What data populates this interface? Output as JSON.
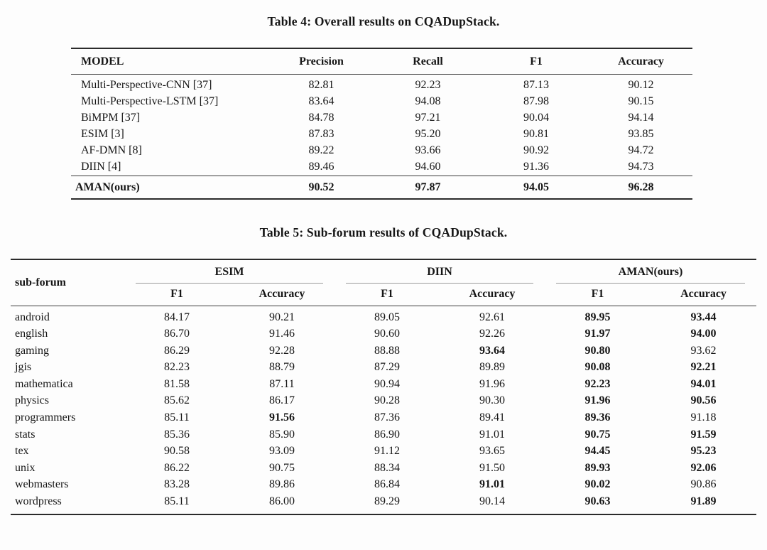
{
  "table4": {
    "title": "Table 4: Overall results on CQADupStack.",
    "headers": [
      "MODEL",
      "Precision",
      "Recall",
      "F1",
      "Accuracy"
    ],
    "rows": [
      {
        "model": "Multi-Perspective-CNN [37]",
        "values": [
          "82.81",
          "92.23",
          "87.13",
          "90.12"
        ]
      },
      {
        "model": "Multi-Perspective-LSTM [37]",
        "values": [
          "83.64",
          "94.08",
          "87.98",
          "90.15"
        ]
      },
      {
        "model": "BiMPM [37]",
        "values": [
          "84.78",
          "97.21",
          "90.04",
          "94.14"
        ]
      },
      {
        "model": "ESIM [3]",
        "values": [
          "87.83",
          "95.20",
          "90.81",
          "93.85"
        ]
      },
      {
        "model": "AF-DMN [8]",
        "values": [
          "89.22",
          "93.66",
          "90.92",
          "94.72"
        ]
      },
      {
        "model": "DIIN [4]",
        "values": [
          "89.46",
          "94.60",
          "91.36",
          "94.73"
        ]
      }
    ],
    "summary_row": {
      "model": "AMAN(ours)",
      "values": [
        "90.52",
        "97.87",
        "94.05",
        "96.28"
      ]
    }
  },
  "table5": {
    "title": "Table 5: Sub-forum results of CQADupStack.",
    "row_header": "sub-forum",
    "groups": [
      {
        "label": "ESIM"
      },
      {
        "label": "DIIN"
      },
      {
        "label": "AMAN(ours)"
      }
    ],
    "sub_headers": [
      "F1",
      "Accuracy",
      "F1",
      "Accuracy",
      "F1",
      "Accuracy"
    ],
    "rows": [
      {
        "forum": "android",
        "values": [
          "84.17",
          "90.21",
          "89.05",
          "92.61",
          "89.95",
          "93.44"
        ],
        "bold": [
          4,
          5
        ]
      },
      {
        "forum": "english",
        "values": [
          "86.70",
          "91.46",
          "90.60",
          "92.26",
          "91.97",
          "94.00"
        ],
        "bold": [
          4,
          5
        ]
      },
      {
        "forum": "gaming",
        "values": [
          "86.29",
          "92.28",
          "88.88",
          "93.64",
          "90.80",
          "93.62"
        ],
        "bold": [
          3,
          4
        ]
      },
      {
        "forum": "jgis",
        "values": [
          "82.23",
          "88.79",
          "87.29",
          "89.89",
          "90.08",
          "92.21"
        ],
        "bold": [
          4,
          5
        ]
      },
      {
        "forum": "mathematica",
        "values": [
          "81.58",
          "87.11",
          "90.94",
          "91.96",
          "92.23",
          "94.01"
        ],
        "bold": [
          4,
          5
        ]
      },
      {
        "forum": "physics",
        "values": [
          "85.62",
          "86.17",
          "90.28",
          "90.30",
          "91.96",
          "90.56"
        ],
        "bold": [
          4,
          5
        ]
      },
      {
        "forum": "programmers",
        "values": [
          "85.11",
          "91.56",
          "87.36",
          "89.41",
          "89.36",
          "91.18"
        ],
        "bold": [
          1,
          4
        ]
      },
      {
        "forum": "stats",
        "values": [
          "85.36",
          "85.90",
          "86.90",
          "91.01",
          "90.75",
          "91.59"
        ],
        "bold": [
          4,
          5
        ]
      },
      {
        "forum": "tex",
        "values": [
          "90.58",
          "93.09",
          "91.12",
          "93.65",
          "94.45",
          "95.23"
        ],
        "bold": [
          4,
          5
        ]
      },
      {
        "forum": "unix",
        "values": [
          "86.22",
          "90.75",
          "88.34",
          "91.50",
          "89.93",
          "92.06"
        ],
        "bold": [
          4,
          5
        ]
      },
      {
        "forum": "webmasters",
        "values": [
          "83.28",
          "89.86",
          "86.84",
          "91.01",
          "90.02",
          "90.86"
        ],
        "bold": [
          3,
          4
        ]
      },
      {
        "forum": "wordpress",
        "values": [
          "85.11",
          "86.00",
          "89.29",
          "90.14",
          "90.63",
          "91.89"
        ],
        "bold": [
          4,
          5
        ]
      }
    ]
  },
  "colors": {
    "background": "#fdfdfd",
    "text": "#161616",
    "rule_thick": "#2b2b2b",
    "rule_thin": "#3a3a3a",
    "cmidrule": "#9a9a9a"
  }
}
